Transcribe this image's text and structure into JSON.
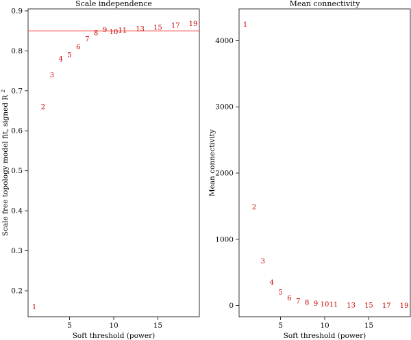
{
  "chart_data": [
    {
      "type": "scatter",
      "title": "Scale independence",
      "xlabel": "Soft threshold (power)",
      "ylabel": "Scale free topology model fit, signed R",
      "ylabel_superscript": "2",
      "xlim": [
        0.3,
        19.7
      ],
      "ylim": [
        0.135,
        0.905
      ],
      "xticks": [
        5,
        10,
        15
      ],
      "yticks": [
        0.2,
        0.3,
        0.4,
        0.5,
        0.6,
        0.7,
        0.8,
        0.9
      ],
      "point_color": "#cc0000",
      "hline": {
        "y": 0.85,
        "color": "#ff4d4d"
      },
      "points": [
        {
          "x": 1,
          "y": 0.16,
          "label": "1"
        },
        {
          "x": 2,
          "y": 0.66,
          "label": "2"
        },
        {
          "x": 3,
          "y": 0.74,
          "label": "3"
        },
        {
          "x": 4,
          "y": 0.78,
          "label": "4"
        },
        {
          "x": 5,
          "y": 0.79,
          "label": "5"
        },
        {
          "x": 6,
          "y": 0.81,
          "label": "6"
        },
        {
          "x": 7,
          "y": 0.83,
          "label": "7"
        },
        {
          "x": 8,
          "y": 0.845,
          "label": "8"
        },
        {
          "x": 9,
          "y": 0.853,
          "label": "9"
        },
        {
          "x": 10,
          "y": 0.848,
          "label": "10"
        },
        {
          "x": 11,
          "y": 0.852,
          "label": "11"
        },
        {
          "x": 13,
          "y": 0.855,
          "label": "13"
        },
        {
          "x": 15,
          "y": 0.859,
          "label": "15"
        },
        {
          "x": 17,
          "y": 0.864,
          "label": "17"
        },
        {
          "x": 19,
          "y": 0.868,
          "label": "19"
        }
      ]
    },
    {
      "type": "scatter",
      "title": "Mean connectivity",
      "xlabel": "Soft threshold (power)",
      "ylabel": "Mean connectivity",
      "xlim": [
        0.3,
        19.7
      ],
      "ylim": [
        -170,
        4480
      ],
      "xticks": [
        5,
        10,
        15
      ],
      "yticks": [
        0,
        1000,
        2000,
        3000,
        4000
      ],
      "point_color": "#cc0000",
      "points": [
        {
          "x": 1,
          "y": 4250,
          "label": "1"
        },
        {
          "x": 2,
          "y": 1490,
          "label": "2"
        },
        {
          "x": 3,
          "y": 670,
          "label": "3"
        },
        {
          "x": 4,
          "y": 350,
          "label": "4"
        },
        {
          "x": 5,
          "y": 200,
          "label": "5"
        },
        {
          "x": 6,
          "y": 115,
          "label": "6"
        },
        {
          "x": 7,
          "y": 70,
          "label": "7"
        },
        {
          "x": 8,
          "y": 45,
          "label": "8"
        },
        {
          "x": 9,
          "y": 30,
          "label": "9"
        },
        {
          "x": 10,
          "y": 20,
          "label": "10"
        },
        {
          "x": 11,
          "y": 14,
          "label": "11"
        },
        {
          "x": 13,
          "y": 7,
          "label": "13"
        },
        {
          "x": 15,
          "y": 4,
          "label": "15"
        },
        {
          "x": 17,
          "y": 2,
          "label": "17"
        },
        {
          "x": 19,
          "y": 1,
          "label": "19"
        }
      ]
    }
  ]
}
